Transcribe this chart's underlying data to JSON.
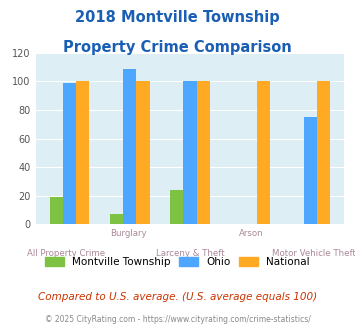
{
  "title_line1": "2018 Montville Township",
  "title_line2": "Property Crime Comparison",
  "categories": [
    "All Property Crime",
    "Burglary",
    "Larceny & Theft",
    "Arson",
    "Motor Vehicle Theft"
  ],
  "cat_line1": [
    "",
    "Burglary",
    "",
    "Arson",
    ""
  ],
  "cat_line2": [
    "All Property Crime",
    "",
    "Larceny & Theft",
    "",
    "Motor Vehicle Theft"
  ],
  "montville": [
    19,
    7,
    24,
    0,
    0
  ],
  "ohio": [
    99,
    109,
    100,
    0,
    75
  ],
  "national": [
    100,
    100,
    100,
    100,
    100
  ],
  "bar_color_montville": "#7dc242",
  "bar_color_ohio": "#4da6ff",
  "bar_color_national": "#ffaa22",
  "ylim": [
    0,
    120
  ],
  "yticks": [
    0,
    20,
    40,
    60,
    80,
    100,
    120
  ],
  "legend_labels": [
    "Montville Township",
    "Ohio",
    "National"
  ],
  "footnote1": "Compared to U.S. average. (U.S. average equals 100)",
  "footnote2": "© 2025 CityRating.com - https://www.cityrating.com/crime-statistics/",
  "title_color": "#1a5fb4",
  "footnote1_color": "#cc3300",
  "footnote2_color": "#888888",
  "bg_color": "#ffffff",
  "plot_bg": "#ddeef5"
}
